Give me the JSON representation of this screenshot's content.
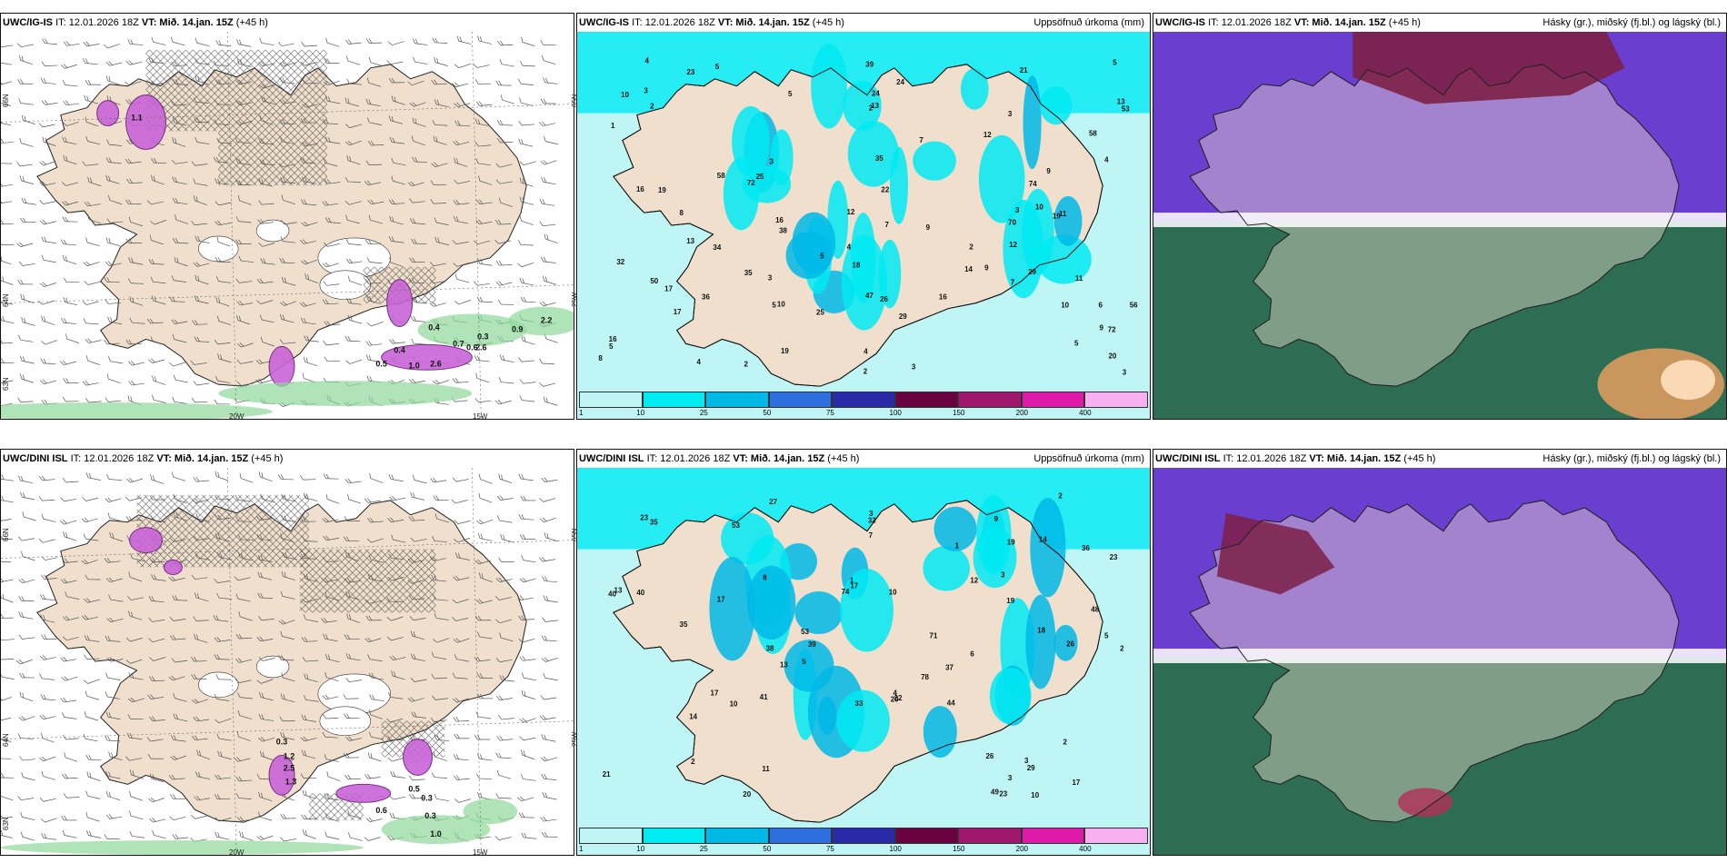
{
  "panels": [
    {
      "model": "UWC/IG-IS",
      "it": "IT: 12.01.2026 18Z",
      "vt": "VT: Mið. 14.jan. 15Z",
      "lead": "(+45 h)",
      "title": ""
    },
    {
      "model": "UWC/IG-IS",
      "it": "IT: 12.01.2026 18Z",
      "vt": "VT: Mið. 14.jan. 15Z",
      "lead": "(+45 h)",
      "title": "Uppsöfnuð úrkoma (mm)"
    },
    {
      "model": "UWC/IG-IS",
      "it": "IT: 12.01.2026 18Z",
      "vt": "VT: Mið. 14.jan. 15Z",
      "lead": "(+45 h)",
      "title": "Hásky (gr.), miðský (fj.bl.) og lágský (bl.)"
    },
    {
      "model": "UWC/DINI ISL",
      "it": "IT: 12.01.2026 18Z",
      "vt": "VT: Mið. 14.jan. 15Z",
      "lead": "(+45 h)",
      "title": ""
    },
    {
      "model": "UWC/DINI ISL",
      "it": "IT: 12.01.2026 18Z",
      "vt": "VT: Mið. 14.jan. 15Z",
      "lead": "(+45 h)",
      "title": "Uppsöfnuð úrkoma (mm)"
    },
    {
      "model": "UWC/DINI ISL",
      "it": "IT: 12.01.2026 18Z",
      "vt": "VT: Mið. 14.jan. 15Z",
      "lead": "(+45 h)",
      "title": "Hásky (gr.), miðský (fj.bl.) og lágský (bl.)"
    }
  ],
  "axes": {
    "lat_66": "66N",
    "lat_64": "64N",
    "lat_63": "63N",
    "lon_20": "20W",
    "lon_15": "15W",
    "lat_65": "65N",
    "lon_25": "25W"
  },
  "colorbar": {
    "ticks": [
      "1",
      "10",
      "25",
      "50",
      "75",
      "100",
      "150",
      "200",
      "400"
    ],
    "colors": [
      "#bff5f5",
      "#00eaf2",
      "#00b8e6",
      "#2e6fe0",
      "#2a2aa8",
      "#6b0040",
      "#a0186e",
      "#e01aa8",
      "#f8b0f0"
    ]
  },
  "wind_labels_top": [
    "1.1",
    "0.9",
    "2.2",
    "0.3",
    "2.6",
    "0.7",
    "1.0",
    "2.6",
    "0.5",
    "0.6",
    "0.4",
    "0.4"
  ],
  "wind_labels_bottom": [
    "1.2",
    "1.3",
    "0.3",
    "0.6",
    "1.0",
    "0.5",
    "0.3",
    "2.5",
    "0.3"
  ],
  "precip_top": [
    "2",
    "14",
    "16",
    "10",
    "11",
    "12",
    "13",
    "53",
    "70",
    "50",
    "72",
    "29",
    "12",
    "17",
    "23",
    "7",
    "19",
    "4",
    "9",
    "21",
    "36",
    "24",
    "35",
    "26",
    "72",
    "16",
    "35",
    "4",
    "34",
    "47",
    "18",
    "38",
    "74",
    "58",
    "19",
    "12",
    "16",
    "24",
    "9",
    "5",
    "3",
    "8",
    "25",
    "5",
    "6",
    "29",
    "10",
    "11",
    "8",
    "5",
    "19",
    "13",
    "39",
    "16",
    "13",
    "56",
    "58",
    "10",
    "32",
    "17",
    "22",
    "20",
    "5",
    "25",
    "4",
    "5",
    "2",
    "3",
    "3",
    "4",
    "5",
    "9",
    "7",
    "2",
    "3",
    "10",
    "5",
    "4",
    "3",
    "9",
    "7",
    "2",
    "1",
    "3",
    "2",
    "3"
  ],
  "precip_bottom": [
    "39",
    "40",
    "14",
    "48",
    "41",
    "17",
    "17",
    "23",
    "35",
    "71",
    "49",
    "53",
    "74",
    "78",
    "44",
    "26",
    "40",
    "53",
    "19",
    "38",
    "32",
    "36",
    "18",
    "23",
    "33",
    "26",
    "27",
    "14",
    "10",
    "20",
    "20",
    "23",
    "19",
    "35",
    "37",
    "11",
    "29",
    "17",
    "7",
    "22",
    "21",
    "12",
    "9",
    "13",
    "17",
    "6",
    "4",
    "5",
    "3",
    "2",
    "10",
    "10",
    "5",
    "13",
    "3",
    "3",
    "2",
    "2",
    "2",
    "8",
    "1",
    "1",
    "3"
  ],
  "colors": {
    "land": "#efdfcc",
    "sea": "#ffffff",
    "cloud_high": "#6a3fd0",
    "cloud_mid": "#7d2046",
    "cloud_low": "#2d6e54"
  }
}
